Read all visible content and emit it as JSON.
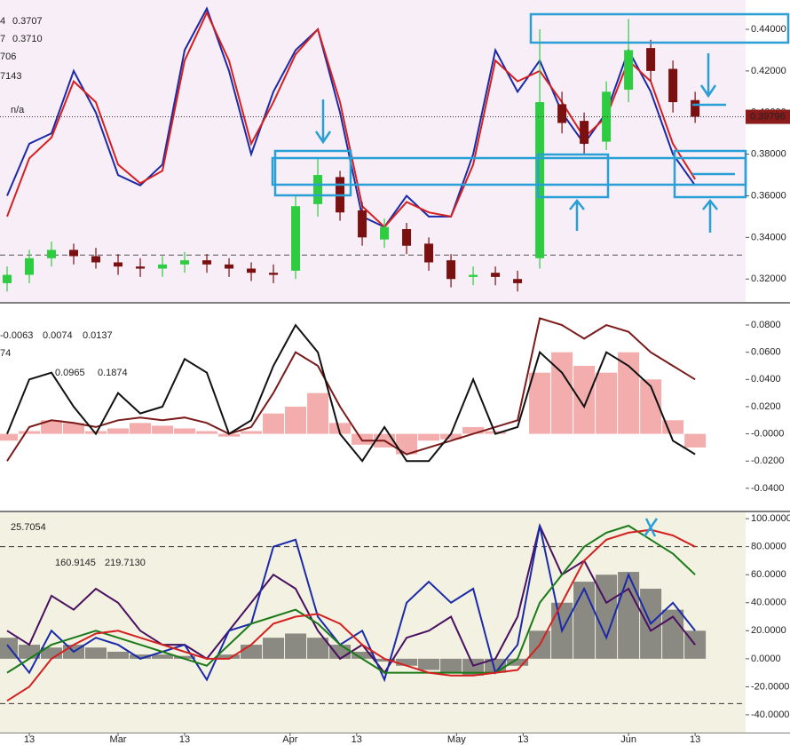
{
  "x_axis": {
    "xlim": [
      -5.28,
      129.1
    ],
    "xticks": [
      {
        "value": 0,
        "label": "13"
      },
      {
        "value": 16,
        "label": "Mar"
      },
      {
        "value": 28,
        "label": "13"
      },
      {
        "value": 47,
        "label": "Apr"
      },
      {
        "value": 59,
        "label": "13"
      },
      {
        "value": 77,
        "label": "May"
      },
      {
        "value": 89,
        "label": "13"
      },
      {
        "value": 108,
        "label": "Jun"
      },
      {
        "value": 120,
        "label": "13"
      }
    ]
  },
  "chart_data": [
    {
      "type": "candlestick",
      "x": [
        -4,
        0,
        4,
        8,
        12,
        16,
        20,
        24,
        28,
        32,
        36,
        40,
        44,
        48,
        52,
        56,
        60,
        64,
        68,
        72,
        76,
        80,
        84,
        88,
        92,
        96,
        100,
        104,
        108,
        112,
        116,
        120
      ],
      "open": [
        0.318,
        0.322,
        0.33,
        0.334,
        0.331,
        0.328,
        0.326,
        0.325,
        0.327,
        0.329,
        0.327,
        0.325,
        0.323,
        0.324,
        0.356,
        0.369,
        0.353,
        0.339,
        0.344,
        0.337,
        0.329,
        0.321,
        0.323,
        0.32,
        0.33,
        0.404,
        0.396,
        0.386,
        0.411,
        0.431,
        0.421,
        0.406
      ],
      "high": [
        0.326,
        0.334,
        0.338,
        0.337,
        0.335,
        0.332,
        0.33,
        0.331,
        0.333,
        0.332,
        0.33,
        0.328,
        0.327,
        0.36,
        0.378,
        0.372,
        0.357,
        0.349,
        0.347,
        0.34,
        0.332,
        0.326,
        0.326,
        0.324,
        0.44,
        0.41,
        0.4,
        0.415,
        0.445,
        0.435,
        0.425,
        0.41
      ],
      "low": [
        0.314,
        0.318,
        0.326,
        0.327,
        0.325,
        0.322,
        0.321,
        0.321,
        0.323,
        0.323,
        0.321,
        0.319,
        0.318,
        0.32,
        0.35,
        0.348,
        0.336,
        0.335,
        0.332,
        0.324,
        0.316,
        0.317,
        0.317,
        0.314,
        0.325,
        0.39,
        0.38,
        0.382,
        0.405,
        0.415,
        0.4,
        0.395
      ],
      "close": [
        0.322,
        0.33,
        0.334,
        0.331,
        0.328,
        0.326,
        0.325,
        0.327,
        0.329,
        0.327,
        0.325,
        0.323,
        0.322,
        0.355,
        0.37,
        0.352,
        0.34,
        0.345,
        0.336,
        0.328,
        0.32,
        0.322,
        0.321,
        0.318,
        0.405,
        0.395,
        0.385,
        0.41,
        0.43,
        0.42,
        0.405,
        0.398
      ],
      "up_color": "#2ecc40",
      "down_color": "#7a1010",
      "series": [
        {
          "style": "line",
          "color": "#1a2aa8",
          "values": [
            0.36,
            0.385,
            0.39,
            0.42,
            0.4,
            0.37,
            0.365,
            0.375,
            0.43,
            0.45,
            0.42,
            0.38,
            0.41,
            0.43,
            0.44,
            0.4,
            0.35,
            0.345,
            0.36,
            0.35,
            0.35,
            0.38,
            0.43,
            0.41,
            0.425,
            0.4,
            0.385,
            0.4,
            0.43,
            0.41,
            0.38,
            0.365
          ]
        },
        {
          "style": "line",
          "color": "#d42020",
          "values": [
            0.35,
            0.378,
            0.388,
            0.415,
            0.405,
            0.375,
            0.366,
            0.372,
            0.425,
            0.448,
            0.425,
            0.385,
            0.405,
            0.428,
            0.44,
            0.405,
            0.355,
            0.345,
            0.357,
            0.352,
            0.35,
            0.375,
            0.425,
            0.415,
            0.42,
            0.405,
            0.388,
            0.398,
            0.425,
            0.415,
            0.385,
            0.368
          ]
        }
      ],
      "levels": [
        {
          "value": 0.3315,
          "color": "#555"
        }
      ],
      "ylim": [
        0.309,
        0.4541
      ],
      "yticks": [
        {
          "value": 0.32,
          "label": "0.32000"
        },
        {
          "value": 0.34,
          "label": "0.34000"
        },
        {
          "value": 0.36,
          "label": "0.36000"
        },
        {
          "value": 0.38,
          "label": "0.38000"
        },
        {
          "value": 0.4,
          "label": "0.40000"
        },
        {
          "value": 0.42,
          "label": "0.42000"
        },
        {
          "value": 0.44,
          "label": "0.44000"
        }
      ],
      "last_price": {
        "value": 0.39796,
        "label": "0.39796"
      },
      "last_price_color": "#8b1a1a",
      "background": "#f7eef7",
      "legend_texts": [
        {
          "text": "4",
          "color": "#1a2aa8"
        },
        {
          "text": "0.3707",
          "color": "#1a2aa8"
        },
        {
          "text": "7",
          "color": "#222"
        },
        {
          "text": "0.3710",
          "color": "#222"
        },
        {
          "text": "706",
          "color": "#1a2aa8"
        },
        {
          "text": "7143",
          "color": "#c01010"
        },
        {
          "text": "n/a",
          "color": "#222"
        }
      ]
    },
    {
      "type": "line",
      "x": [
        -4,
        0,
        4,
        8,
        12,
        16,
        20,
        24,
        28,
        32,
        36,
        40,
        44,
        48,
        52,
        56,
        60,
        64,
        68,
        72,
        76,
        80,
        84,
        88,
        92,
        96,
        100,
        104,
        108,
        112,
        116,
        120
      ],
      "series": [
        {
          "style": "histogram",
          "color": "#f08a8a",
          "values": [
            -0.005,
            0.002,
            0.01,
            0.008,
            0.002,
            0.004,
            0.008,
            0.006,
            0.004,
            0.002,
            -0.002,
            0.002,
            0.015,
            0.02,
            0.03,
            0.008,
            -0.008,
            -0.01,
            -0.015,
            -0.005,
            -0.004,
            0.005,
            0.002,
            0.0,
            0.045,
            0.06,
            0.05,
            0.045,
            0.06,
            0.04,
            0.01,
            -0.01
          ]
        },
        {
          "style": "line",
          "color": "#7a1a1a",
          "values": [
            -0.02,
            0.005,
            0.01,
            0.008,
            0.005,
            0.01,
            0.012,
            0.01,
            0.012,
            0.008,
            0.0,
            0.005,
            0.03,
            0.06,
            0.05,
            0.02,
            -0.005,
            -0.005,
            -0.015,
            -0.01,
            -0.005,
            0.0,
            0.005,
            0.01,
            0.085,
            0.08,
            0.07,
            0.08,
            0.075,
            0.06,
            0.05,
            0.04
          ]
        },
        {
          "style": "line",
          "color": "#111",
          "values": [
            0.0,
            0.04,
            0.045,
            0.02,
            0.0,
            0.03,
            0.015,
            0.02,
            0.055,
            0.045,
            0.0,
            0.01,
            0.05,
            0.08,
            0.06,
            0.0,
            -0.02,
            0.005,
            -0.02,
            -0.02,
            0.0,
            0.04,
            0.0,
            0.005,
            0.06,
            0.045,
            0.02,
            0.06,
            0.05,
            0.035,
            -0.005,
            -0.015
          ]
        }
      ],
      "ylim": [
        -0.0564,
        0.0957
      ],
      "yticks": [
        {
          "value": -0.04,
          "label": "-0.0400"
        },
        {
          "value": -0.02,
          "label": "-0.0200"
        },
        {
          "value": 0,
          "label": "-0.0000"
        },
        {
          "value": 0.02,
          "label": "0.0200"
        },
        {
          "value": 0.04,
          "label": "0.0400"
        },
        {
          "value": 0.06,
          "label": "0.0600"
        },
        {
          "value": 0.08,
          "label": "0.0800"
        }
      ],
      "background": "#ffffff",
      "legend_texts": [
        {
          "text": "-0.0063",
          "color": "#222"
        },
        {
          "text": "0.0074",
          "color": "#1a2aa8"
        },
        {
          "text": "0.0137",
          "color": "#c01010"
        },
        {
          "text": "74",
          "color": "#222"
        },
        {
          "text": "0.0965",
          "color": "#222"
        },
        {
          "text": "0.1874",
          "color": "#7a1a1a"
        }
      ]
    },
    {
      "type": "line",
      "x": [
        -4,
        0,
        4,
        8,
        12,
        16,
        20,
        24,
        28,
        32,
        36,
        40,
        44,
        48,
        52,
        56,
        60,
        64,
        68,
        72,
        76,
        80,
        84,
        88,
        92,
        96,
        100,
        104,
        108,
        112,
        116,
        120
      ],
      "series": [
        {
          "style": "histogram",
          "color": "#222",
          "values": [
            15,
            10,
            8,
            10,
            8,
            5,
            3,
            3,
            2,
            0,
            3,
            10,
            15,
            18,
            15,
            10,
            5,
            -2,
            -5,
            -8,
            -10,
            -12,
            -10,
            -5,
            20,
            40,
            55,
            60,
            62,
            50,
            35,
            20
          ]
        },
        {
          "style": "line",
          "color": "#4a1060",
          "values": [
            20,
            10,
            45,
            35,
            50,
            40,
            20,
            10,
            10,
            0,
            20,
            40,
            60,
            50,
            20,
            0,
            10,
            -10,
            15,
            20,
            30,
            -5,
            0,
            30,
            95,
            60,
            70,
            40,
            50,
            20,
            30,
            10
          ]
        },
        {
          "style": "line",
          "color": "#1a2aa8",
          "values": [
            10,
            -10,
            20,
            5,
            15,
            10,
            0,
            5,
            10,
            -15,
            20,
            25,
            80,
            85,
            30,
            10,
            20,
            -15,
            40,
            55,
            40,
            50,
            -10,
            10,
            95,
            20,
            50,
            15,
            60,
            25,
            40,
            20
          ]
        },
        {
          "style": "line",
          "color": "#1a7a1a",
          "values": [
            -10,
            0,
            10,
            15,
            20,
            15,
            10,
            5,
            0,
            -5,
            10,
            25,
            30,
            35,
            25,
            10,
            0,
            -10,
            -10,
            -10,
            -10,
            -10,
            -10,
            0,
            40,
            60,
            80,
            90,
            95,
            85,
            75,
            60
          ]
        },
        {
          "style": "line",
          "color": "#d42020",
          "values": [
            -30,
            -20,
            0,
            10,
            18,
            20,
            15,
            10,
            5,
            0,
            0,
            10,
            25,
            30,
            32,
            25,
            10,
            0,
            -5,
            -10,
            -12,
            -12,
            -10,
            -8,
            10,
            40,
            70,
            85,
            90,
            92,
            88,
            80
          ]
        }
      ],
      "levels": [
        {
          "value": 80,
          "color": "#333"
        },
        {
          "value": -32,
          "color": "#333"
        }
      ],
      "ylim": [
        -52.7,
        104.5
      ],
      "yticks": [
        {
          "value": -40,
          "label": "-40.0000"
        },
        {
          "value": -20,
          "label": "-20.0000"
        },
        {
          "value": 0,
          "label": "0.0000"
        },
        {
          "value": 20,
          "label": "20.0000"
        },
        {
          "value": 40,
          "label": "40.0000"
        },
        {
          "value": 60,
          "label": "60.0000"
        },
        {
          "value": 80,
          "label": "80.0000"
        },
        {
          "value": 100,
          "label": "100.0000"
        }
      ],
      "background": "#f3f2e2",
      "legend_texts": [
        {
          "text": "25.7054",
          "color": "#222"
        },
        {
          "text": "160.9145",
          "color": "#1a7a1a"
        },
        {
          "text": "219.7130",
          "color": "#c01010"
        }
      ]
    }
  ]
}
